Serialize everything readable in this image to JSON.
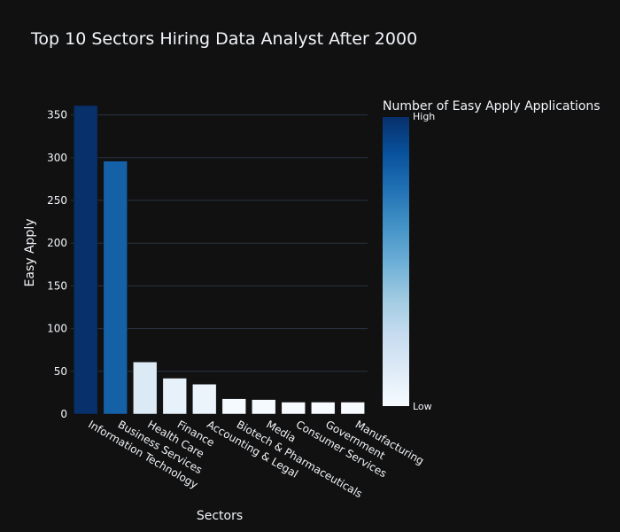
{
  "chart_data": {
    "type": "bar",
    "title": "Top 10 Sectors Hiring Data Analyst After 2000",
    "xlabel": "Sectors",
    "ylabel": "Easy Apply",
    "categories": [
      "Information Technology",
      "Business Services",
      "Health Care",
      "Finance",
      "Accounting & Legal",
      "Biotech & Pharmaceuticals",
      "Media",
      "Consumer Services",
      "Government",
      "Manufacturing"
    ],
    "values": [
      361,
      296,
      61,
      42,
      35,
      18,
      17,
      14,
      14,
      14
    ],
    "ylim": [
      0,
      361
    ],
    "yticks": [
      0,
      50,
      100,
      150,
      200,
      250,
      300,
      350
    ],
    "grid": true,
    "colorscale": [
      "#f7fbff",
      "#deebf7",
      "#c6dbef",
      "#9ecae1",
      "#6baed6",
      "#4292c6",
      "#2171b5",
      "#08519c",
      "#08306b"
    ],
    "colorbar": {
      "title": "Number of Easy Apply Applications",
      "high_label": "High",
      "low_label": "Low"
    }
  }
}
